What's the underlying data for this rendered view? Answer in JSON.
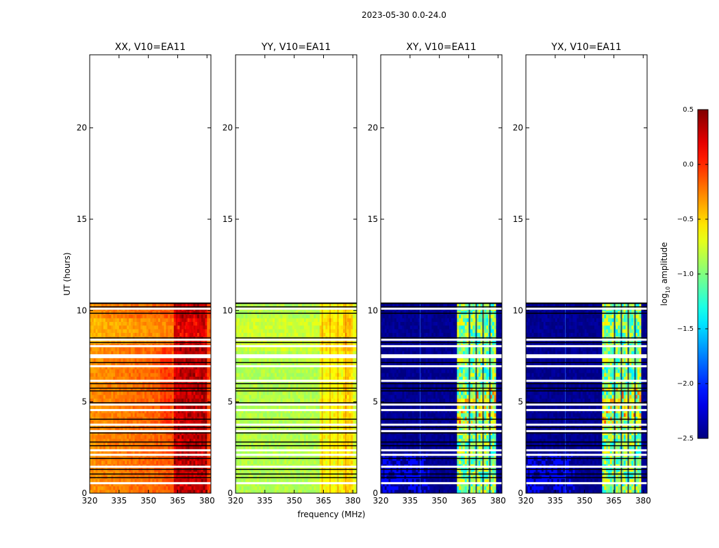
{
  "figure": {
    "title": "2023-05-30 0.0-24.0",
    "xlabel": "frequency (MHz)",
    "ylabel": "UT (hours)"
  },
  "chart_data": [
    {
      "type": "heatmap",
      "title": "XX, V10=EA11",
      "mode": "xx",
      "xlim": [
        320,
        382
      ],
      "ylim": [
        0,
        24
      ],
      "xticks": [
        320,
        335,
        350,
        365,
        380
      ],
      "yticks": [
        0,
        5,
        10,
        15,
        20
      ],
      "data_extent_hours": [
        0,
        10.4
      ],
      "base_log_amplitude": -0.3,
      "rfi_band_mhz": [
        363,
        380
      ],
      "rfi_log_amplitude": 0.25
    },
    {
      "type": "heatmap",
      "title": "YY, V10=EA11",
      "mode": "yy",
      "xlim": [
        320,
        382
      ],
      "ylim": [
        0,
        24
      ],
      "xticks": [
        320,
        335,
        350,
        365,
        380
      ],
      "yticks": [
        0,
        5,
        10,
        15,
        20
      ],
      "data_extent_hours": [
        0,
        10.4
      ],
      "base_log_amplitude": -0.85,
      "rfi_band_mhz": [
        363,
        380
      ],
      "rfi_log_amplitude": -0.5
    },
    {
      "type": "heatmap",
      "title": "XY, V10=EA11",
      "mode": "cross",
      "xlim": [
        320,
        382
      ],
      "ylim": [
        0,
        24
      ],
      "xticks": [
        320,
        335,
        350,
        365,
        380
      ],
      "yticks": [
        0,
        5,
        10,
        15,
        20
      ],
      "data_extent_hours": [
        0,
        10.4
      ],
      "base_log_amplitude": -2.45,
      "rfi_band_mhz": [
        359.5,
        379
      ],
      "rfi_log_amplitude": -1.0
    },
    {
      "type": "heatmap",
      "title": "YX, V10=EA11",
      "mode": "cross",
      "xlim": [
        320,
        382
      ],
      "ylim": [
        0,
        24
      ],
      "xticks": [
        320,
        335,
        350,
        365,
        380
      ],
      "yticks": [
        0,
        5,
        10,
        15,
        20
      ],
      "data_extent_hours": [
        0,
        10.4
      ],
      "base_log_amplitude": -2.45,
      "rfi_band_mhz": [
        359.5,
        379
      ],
      "rfi_log_amplitude": -1.0
    }
  ],
  "colorbar": {
    "label": "log10 amplitude",
    "label_main": "log",
    "label_sub": "10",
    "label_rest": " amplitude",
    "colormap": "jet",
    "vmin": -2.5,
    "vmax": 0.5,
    "ticks": [
      0.5,
      0.0,
      -0.5,
      -1.0,
      -1.5,
      -2.0,
      -2.5
    ],
    "tick_labels": [
      "0.5",
      "0.0",
      "−0.5",
      "−1.0",
      "−1.5",
      "−2.0",
      "−2.5"
    ]
  }
}
